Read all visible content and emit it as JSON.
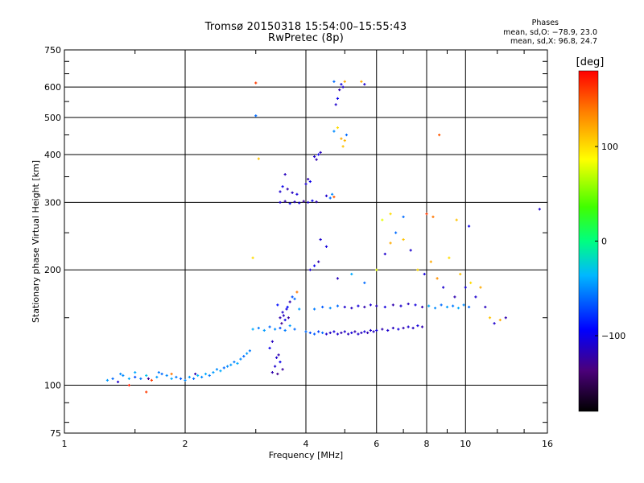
{
  "title_line1": "Tromsø 20150318 15:54:00–15:55:43",
  "title_line2": "RwPretec (8p)",
  "phases_label": "Phases",
  "phases_O": "mean, sd,O: −78.9, 23.0",
  "phases_X": "mean, sd,X:  96.8, 24.7",
  "colorbar": {
    "unit_label": "[deg]",
    "ticks": [
      {
        "value": 100,
        "label": "100"
      },
      {
        "value": 0,
        "label": "0"
      },
      {
        "value": -100,
        "label": "−100"
      }
    ],
    "range": [
      -180,
      180
    ]
  },
  "chart_data": {
    "type": "scatter",
    "xlabel": "Frequency [MHz]",
    "ylabel": "Stationary phase Virtual Height [km]",
    "x_scale": "log",
    "y_scale": "log",
    "xlim": [
      1,
      16
    ],
    "ylim": [
      75,
      750
    ],
    "grid": true,
    "x_ticks": [
      {
        "value": 1,
        "label": "1"
      },
      {
        "value": 2,
        "label": "2"
      },
      {
        "value": 4,
        "label": "4"
      },
      {
        "value": 6,
        "label": "6"
      },
      {
        "value": 8,
        "label": "8"
      },
      {
        "value": 10,
        "label": "10"
      },
      {
        "value": 16,
        "label": "16"
      }
    ],
    "y_ticks": [
      {
        "value": 75,
        "label": "75"
      },
      {
        "value": 100,
        "label": "100"
      },
      {
        "value": 200,
        "label": "200"
      },
      {
        "value": 300,
        "label": "300"
      },
      {
        "value": 400,
        "label": "400"
      },
      {
        "value": 500,
        "label": "500"
      },
      {
        "value": 600,
        "label": "600"
      },
      {
        "value": 750,
        "label": "750"
      }
    ],
    "series": [
      {
        "points": [
          [
            1.28,
            103,
            -45
          ],
          [
            1.32,
            104,
            -60
          ],
          [
            1.36,
            102,
            -110
          ],
          [
            1.4,
            106,
            -50
          ],
          [
            1.45,
            104,
            -40
          ],
          [
            1.5,
            105,
            -70
          ],
          [
            1.55,
            104,
            -55
          ],
          [
            1.6,
            106,
            -30
          ],
          [
            1.65,
            103,
            160
          ],
          [
            1.7,
            105,
            -45
          ],
          [
            1.75,
            107,
            -60
          ],
          [
            1.8,
            106,
            -50
          ],
          [
            1.85,
            104,
            -40
          ],
          [
            1.9,
            105,
            -55
          ],
          [
            1.95,
            104,
            -65
          ],
          [
            2.0,
            103,
            -50
          ],
          [
            2.05,
            105,
            -45
          ],
          [
            2.1,
            104,
            -60
          ],
          [
            2.15,
            106,
            -35
          ],
          [
            2.2,
            105,
            -50
          ],
          [
            2.25,
            107,
            -40
          ],
          [
            2.3,
            106,
            -55
          ],
          [
            2.35,
            108,
            -45
          ],
          [
            2.4,
            110,
            -50
          ],
          [
            2.45,
            109,
            -40
          ],
          [
            2.5,
            111,
            -60
          ],
          [
            2.55,
            112,
            -50
          ],
          [
            2.6,
            113,
            -45
          ],
          [
            2.65,
            115,
            -55
          ],
          [
            2.7,
            114,
            -40
          ],
          [
            2.75,
            117,
            -50
          ],
          [
            2.8,
            119,
            -60
          ],
          [
            2.85,
            121,
            -45
          ],
          [
            2.9,
            123,
            -55
          ],
          [
            1.6,
            96,
            160
          ],
          [
            1.5,
            108,
            -40
          ],
          [
            1.45,
            100,
            170
          ],
          [
            1.85,
            107,
            140
          ],
          [
            1.72,
            108,
            -55
          ],
          [
            2.12,
            107,
            -120
          ],
          [
            1.62,
            104,
            -130
          ],
          [
            1.38,
            107,
            -50
          ]
        ]
      },
      {
        "points": [
          [
            2.95,
            140,
            -40
          ],
          [
            3.05,
            141,
            -55
          ],
          [
            3.15,
            139,
            -45
          ],
          [
            3.25,
            142,
            -60
          ],
          [
            3.35,
            140,
            -50
          ],
          [
            3.45,
            141,
            -70
          ],
          [
            3.55,
            139,
            -55
          ],
          [
            3.65,
            143,
            -45
          ],
          [
            3.75,
            140,
            -60
          ],
          [
            3.3,
            108,
            -120
          ],
          [
            3.35,
            112,
            -110
          ],
          [
            3.4,
            107,
            -130
          ],
          [
            3.45,
            115,
            -100
          ],
          [
            3.5,
            110,
            -125
          ],
          [
            3.38,
            118,
            -110
          ],
          [
            3.42,
            120,
            -120
          ],
          [
            3.25,
            125,
            -100
          ],
          [
            3.3,
            130,
            -115
          ],
          [
            3.45,
            150,
            -120
          ],
          [
            3.5,
            155,
            -110
          ],
          [
            3.55,
            148,
            -100
          ],
          [
            3.6,
            160,
            -90
          ],
          [
            3.65,
            165,
            -120
          ],
          [
            3.48,
            145,
            -130
          ],
          [
            3.52,
            152,
            -115
          ],
          [
            3.58,
            158,
            -105
          ],
          [
            3.62,
            150,
            -125
          ],
          [
            3.7,
            170,
            -70
          ],
          [
            3.75,
            168,
            -60
          ],
          [
            3.4,
            162,
            -90
          ],
          [
            3.8,
            175,
            140
          ],
          [
            3.85,
            158,
            -45
          ]
        ]
      },
      {
        "points": [
          [
            4.0,
            138,
            -60
          ],
          [
            4.1,
            137,
            -70
          ],
          [
            4.2,
            136,
            -65
          ],
          [
            4.3,
            138,
            -75
          ],
          [
            4.4,
            137,
            -60
          ],
          [
            4.5,
            136,
            -110
          ],
          [
            4.6,
            137,
            -115
          ],
          [
            4.7,
            138,
            -105
          ],
          [
            4.8,
            136,
            -110
          ],
          [
            4.9,
            137,
            -120
          ],
          [
            5.0,
            138,
            -110
          ],
          [
            5.1,
            136,
            -115
          ],
          [
            5.2,
            137,
            -105
          ],
          [
            5.3,
            138,
            -120
          ],
          [
            5.4,
            136,
            -110
          ],
          [
            5.5,
            137,
            -115
          ],
          [
            5.6,
            138,
            -105
          ],
          [
            5.7,
            137,
            -120
          ],
          [
            5.8,
            139,
            -110
          ],
          [
            5.9,
            138,
            -115
          ],
          [
            6.0,
            139,
            -105
          ],
          [
            6.2,
            140,
            -120
          ],
          [
            6.4,
            139,
            -110
          ],
          [
            6.6,
            141,
            -115
          ],
          [
            6.8,
            140,
            -105
          ],
          [
            7.0,
            141,
            -120
          ],
          [
            7.2,
            142,
            -110
          ],
          [
            7.4,
            141,
            -115
          ],
          [
            7.6,
            143,
            -105
          ],
          [
            7.8,
            142,
            -120
          ]
        ]
      },
      {
        "points": [
          [
            4.2,
            158,
            -55
          ],
          [
            4.4,
            160,
            -65
          ],
          [
            4.6,
            159,
            -50
          ],
          [
            4.8,
            161,
            -60
          ],
          [
            5.0,
            160,
            -110
          ],
          [
            5.2,
            159,
            -115
          ],
          [
            5.4,
            161,
            -105
          ],
          [
            5.6,
            160,
            -120
          ],
          [
            5.8,
            162,
            -110
          ],
          [
            6.0,
            161,
            -115
          ],
          [
            6.3,
            160,
            -105
          ],
          [
            6.6,
            162,
            -120
          ],
          [
            6.9,
            161,
            -110
          ],
          [
            7.2,
            163,
            -115
          ],
          [
            7.5,
            162,
            -105
          ],
          [
            7.8,
            160,
            -120
          ],
          [
            8.1,
            161,
            -40
          ],
          [
            8.4,
            159,
            -50
          ],
          [
            8.7,
            162,
            -60
          ],
          [
            9.0,
            160,
            -45
          ],
          [
            9.3,
            161,
            -55
          ],
          [
            9.6,
            159,
            -40
          ],
          [
            9.9,
            162,
            -50
          ],
          [
            10.2,
            160,
            -60
          ]
        ]
      },
      {
        "points": [
          [
            3.45,
            300,
            -110
          ],
          [
            3.55,
            302,
            -120
          ],
          [
            3.65,
            298,
            -100
          ],
          [
            3.75,
            301,
            -115
          ],
          [
            3.85,
            299,
            -105
          ],
          [
            3.95,
            302,
            -125
          ],
          [
            4.05,
            300,
            -110
          ],
          [
            4.15,
            303,
            -100
          ],
          [
            4.25,
            301,
            -120
          ],
          [
            3.45,
            320,
            -110
          ],
          [
            3.5,
            330,
            -100
          ],
          [
            3.6,
            325,
            -120
          ],
          [
            3.7,
            318,
            -115
          ],
          [
            3.8,
            315,
            -105
          ],
          [
            4.0,
            335,
            -110
          ],
          [
            4.05,
            345,
            -120
          ],
          [
            4.1,
            340,
            -100
          ],
          [
            3.55,
            355,
            -115
          ],
          [
            4.5,
            312,
            -110
          ],
          [
            4.6,
            308,
            -60
          ],
          [
            4.65,
            315,
            -50
          ],
          [
            4.7,
            310,
            150
          ],
          [
            4.2,
            395,
            -110
          ],
          [
            4.25,
            388,
            -120
          ],
          [
            4.3,
            400,
            -100
          ],
          [
            4.35,
            405,
            -115
          ]
        ]
      },
      {
        "points": [
          [
            4.7,
            460,
            -50
          ],
          [
            4.8,
            470,
            100
          ],
          [
            4.9,
            440,
            120
          ],
          [
            4.95,
            420,
            110
          ],
          [
            5.0,
            435,
            115
          ],
          [
            5.05,
            450,
            -60
          ],
          [
            4.75,
            540,
            -110
          ],
          [
            4.8,
            560,
            -100
          ],
          [
            4.85,
            590,
            -120
          ],
          [
            4.9,
            610,
            -105
          ],
          [
            4.95,
            600,
            -110
          ],
          [
            5.0,
            620,
            120
          ],
          [
            4.7,
            620,
            -60
          ],
          [
            5.5,
            620,
            120
          ],
          [
            5.6,
            610,
            -110
          ],
          [
            3.0,
            615,
            160
          ],
          [
            3.0,
            505,
            -60
          ],
          [
            3.05,
            390,
            110
          ],
          [
            2.95,
            215,
            100
          ]
        ]
      },
      {
        "points": [
          [
            4.1,
            200,
            -110
          ],
          [
            4.2,
            205,
            -100
          ],
          [
            4.3,
            210,
            -120
          ],
          [
            4.35,
            240,
            -110
          ],
          [
            4.5,
            230,
            -105
          ],
          [
            4.8,
            190,
            -115
          ],
          [
            5.2,
            195,
            -40
          ],
          [
            5.6,
            185,
            -60
          ],
          [
            6.0,
            200,
            80
          ],
          [
            6.3,
            220,
            -110
          ],
          [
            6.5,
            235,
            120
          ],
          [
            6.7,
            250,
            -60
          ],
          [
            7.0,
            240,
            110
          ],
          [
            7.3,
            225,
            -110
          ],
          [
            7.6,
            200,
            100
          ],
          [
            7.9,
            195,
            -105
          ],
          [
            8.2,
            210,
            120
          ],
          [
            8.5,
            190,
            130
          ],
          [
            8.8,
            180,
            -110
          ],
          [
            9.1,
            215,
            100
          ],
          [
            9.4,
            170,
            -120
          ],
          [
            9.7,
            195,
            110
          ],
          [
            10.0,
            180,
            -105
          ],
          [
            10.3,
            185,
            100
          ],
          [
            10.6,
            170,
            -110
          ],
          [
            10.9,
            180,
            120
          ],
          [
            11.2,
            160,
            -115
          ],
          [
            11.5,
            150,
            110
          ],
          [
            11.8,
            145,
            -110
          ],
          [
            12.2,
            148,
            120
          ],
          [
            12.6,
            150,
            -120
          ],
          [
            6.2,
            270,
            80
          ],
          [
            6.5,
            280,
            100
          ],
          [
            7.0,
            275,
            -60
          ],
          [
            8.0,
            280,
            160
          ],
          [
            8.3,
            275,
            140
          ],
          [
            9.5,
            270,
            110
          ],
          [
            10.2,
            260,
            -100
          ],
          [
            15.3,
            288,
            -110
          ],
          [
            8.6,
            450,
            150
          ]
        ]
      }
    ]
  }
}
